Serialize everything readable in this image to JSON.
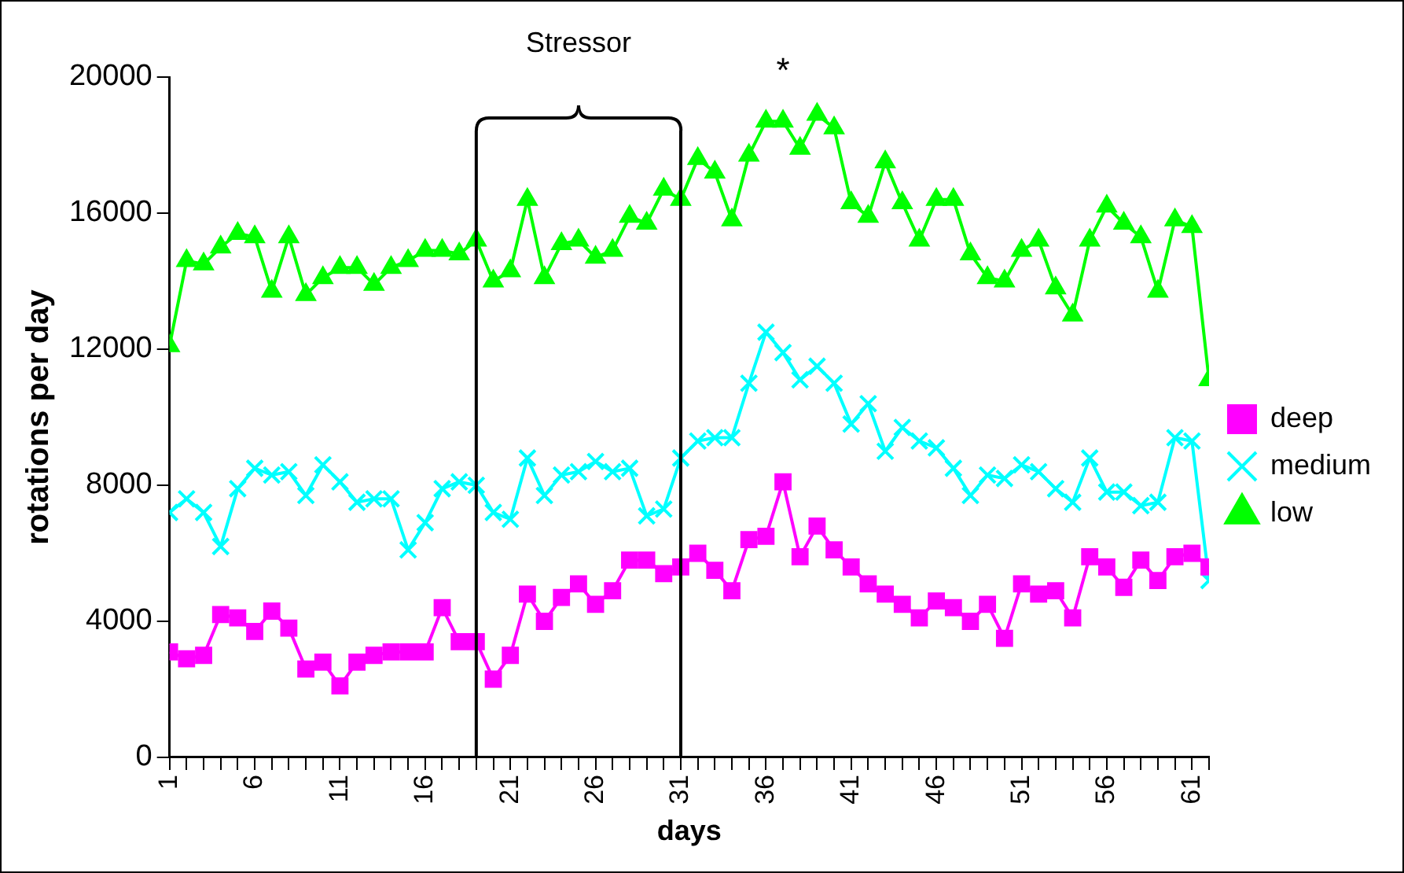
{
  "chart_data": {
    "type": "line",
    "xlabel": "days",
    "ylabel": "rotations per day",
    "x": [
      1,
      2,
      3,
      4,
      5,
      6,
      7,
      8,
      9,
      10,
      11,
      12,
      13,
      14,
      15,
      16,
      17,
      18,
      19,
      20,
      21,
      22,
      23,
      24,
      25,
      26,
      27,
      28,
      29,
      30,
      31,
      32,
      33,
      34,
      35,
      36,
      37,
      38,
      39,
      40,
      41,
      42,
      43,
      44,
      45,
      46,
      47,
      48,
      49,
      50,
      51,
      52,
      53,
      54,
      55,
      56,
      57,
      58,
      59,
      60,
      61,
      62
    ],
    "xlim": [
      1,
      62
    ],
    "xticks": [
      1,
      {
        "value": 2,
        "label": null
      },
      {
        "value": 3,
        "label": null
      },
      {
        "value": 4,
        "label": null
      },
      {
        "value": 5,
        "label": null
      },
      6,
      {
        "value": 7,
        "label": null
      },
      {
        "value": 8,
        "label": null
      },
      {
        "value": 9,
        "label": null
      },
      {
        "value": 10,
        "label": null
      },
      11,
      {
        "value": 12,
        "label": null
      },
      {
        "value": 13,
        "label": null
      },
      {
        "value": 14,
        "label": null
      },
      {
        "value": 15,
        "label": null
      },
      16,
      {
        "value": 17,
        "label": null
      },
      {
        "value": 18,
        "label": null
      },
      {
        "value": 19,
        "label": null
      },
      {
        "value": 20,
        "label": null
      },
      21,
      {
        "value": 22,
        "label": null
      },
      {
        "value": 23,
        "label": null
      },
      {
        "value": 24,
        "label": null
      },
      {
        "value": 25,
        "label": null
      },
      26,
      {
        "value": 27,
        "label": null
      },
      {
        "value": 28,
        "label": null
      },
      {
        "value": 29,
        "label": null
      },
      {
        "value": 30,
        "label": null
      },
      31,
      {
        "value": 32,
        "label": null
      },
      {
        "value": 33,
        "label": null
      },
      {
        "value": 34,
        "label": null
      },
      {
        "value": 35,
        "label": null
      },
      36,
      {
        "value": 37,
        "label": null
      },
      {
        "value": 38,
        "label": null
      },
      {
        "value": 39,
        "label": null
      },
      {
        "value": 40,
        "label": null
      },
      41,
      {
        "value": 42,
        "label": null
      },
      {
        "value": 43,
        "label": null
      },
      {
        "value": 44,
        "label": null
      },
      {
        "value": 45,
        "label": null
      },
      46,
      {
        "value": 47,
        "label": null
      },
      {
        "value": 48,
        "label": null
      },
      {
        "value": 49,
        "label": null
      },
      {
        "value": 50,
        "label": null
      },
      51,
      {
        "value": 52,
        "label": null
      },
      {
        "value": 53,
        "label": null
      },
      {
        "value": 54,
        "label": null
      },
      {
        "value": 55,
        "label": null
      },
      56,
      {
        "value": 57,
        "label": null
      },
      {
        "value": 58,
        "label": null
      },
      {
        "value": 59,
        "label": null
      },
      {
        "value": 60,
        "label": null
      },
      61,
      {
        "value": 62,
        "label": null
      }
    ],
    "ylim": [
      0,
      20000
    ],
    "yticks": [
      0,
      4000,
      8000,
      12000,
      16000,
      20000
    ],
    "grid": false,
    "legend": "right",
    "series": [
      {
        "name": "deep",
        "color": "#ff00ff",
        "marker": "square",
        "values": [
          3100,
          2900,
          3000,
          4200,
          4100,
          3700,
          4300,
          3800,
          2600,
          2800,
          2100,
          2800,
          3000,
          3100,
          3100,
          3100,
          4400,
          3400,
          3400,
          2300,
          3000,
          4800,
          4000,
          4700,
          5100,
          4500,
          4900,
          5800,
          5800,
          5400,
          5600,
          6000,
          5500,
          4900,
          6400,
          6500,
          8100,
          5900,
          6800,
          6100,
          5600,
          5100,
          4800,
          4500,
          4100,
          4600,
          4400,
          4000,
          4500,
          3500,
          5100,
          4800,
          4900,
          4100,
          5900,
          5600,
          5000,
          5800,
          5200,
          5900,
          6000,
          5600
        ]
      },
      {
        "name": "medium",
        "color": "#00ffff",
        "marker": "cross",
        "values": [
          7200,
          7600,
          7200,
          6200,
          7900,
          8500,
          8300,
          8400,
          7700,
          8600,
          8100,
          7500,
          7600,
          7600,
          6100,
          6900,
          7900,
          8100,
          8000,
          7200,
          7000,
          8800,
          7700,
          8300,
          8400,
          8700,
          8400,
          8500,
          7100,
          7300,
          8800,
          9300,
          9400,
          9400,
          11000,
          12500,
          11900,
          11100,
          11500,
          11000,
          9800,
          10400,
          9000,
          9700,
          9300,
          9100,
          8500,
          7700,
          8300,
          8200,
          8600,
          8400,
          7900,
          7500,
          8800,
          7800,
          7800,
          7400,
          7500,
          9400,
          9300,
          5200
        ]
      },
      {
        "name": "low",
        "color": "#00ff00",
        "marker": "triangle",
        "values": [
          12100,
          14600,
          14500,
          15000,
          15400,
          15300,
          13700,
          15300,
          13600,
          14100,
          14400,
          14400,
          13900,
          14400,
          14600,
          14900,
          14900,
          14800,
          15200,
          14000,
          14300,
          16400,
          14100,
          15100,
          15200,
          14700,
          14900,
          15900,
          15700,
          16700,
          16400,
          17600,
          17200,
          15800,
          17700,
          18700,
          18700,
          17900,
          18900,
          18500,
          16300,
          15900,
          17500,
          16300,
          15200,
          16400,
          16400,
          14800,
          14100,
          14000,
          14900,
          15200,
          13800,
          13000,
          15200,
          16200,
          15700,
          15300,
          13700,
          15800,
          15600,
          11100
        ]
      }
    ],
    "ref_lines": [
      {
        "axis": "x",
        "value": 19,
        "color": "#000000"
      },
      {
        "axis": "x",
        "value": 31,
        "color": "#000000"
      }
    ],
    "annotations": [
      "Stressor",
      {
        "text": "*",
        "x": 37,
        "y": 18700
      }
    ]
  }
}
